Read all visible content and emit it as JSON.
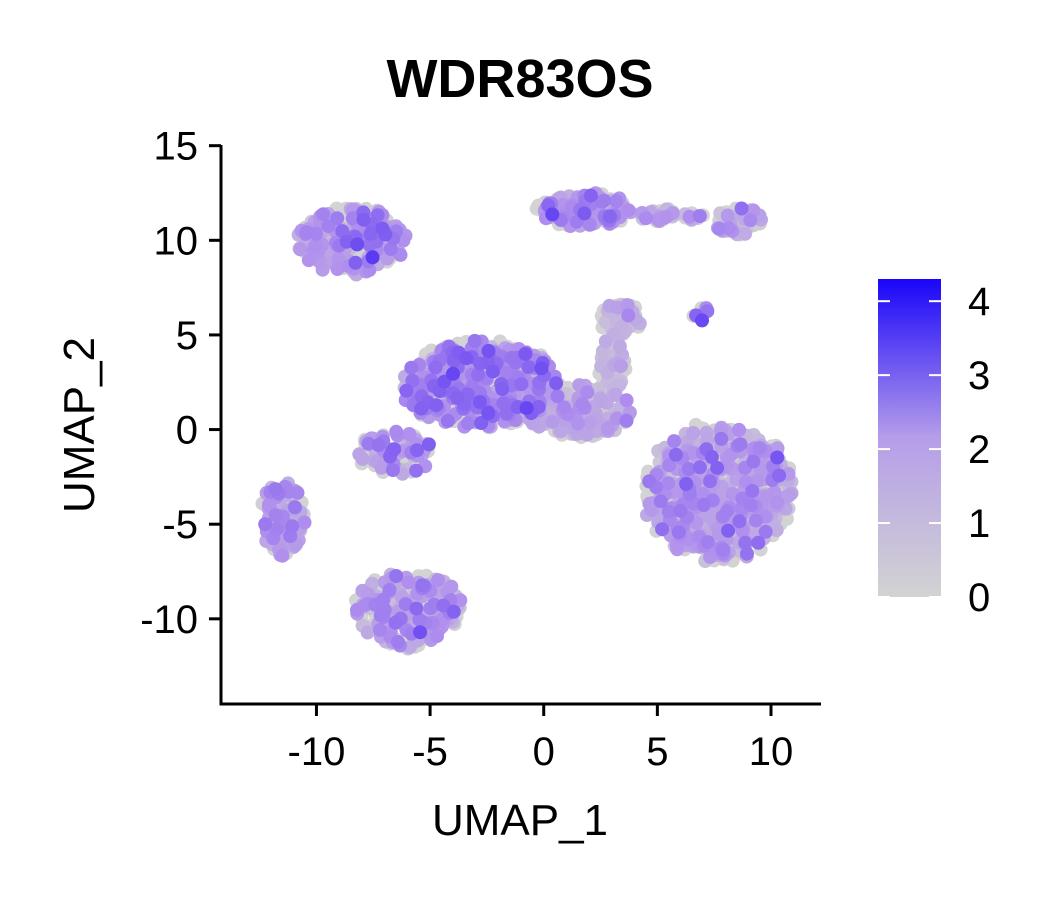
{
  "chart_data": {
    "type": "scatter",
    "title": "WDR83OS",
    "xlabel": "UMAP_1",
    "ylabel": "UMAP_2",
    "xlim": [
      -14.2,
      12.2
    ],
    "ylim": [
      -14.5,
      15.3
    ],
    "xticks": [
      -10,
      -5,
      0,
      5,
      10
    ],
    "xtick_labels": [
      "-10",
      "-5",
      "0",
      "5",
      "10"
    ],
    "yticks": [
      15,
      10,
      5,
      0,
      -5,
      -10
    ],
    "ytick_labels": [
      "15",
      "10",
      "5",
      "0",
      "-5",
      "-10"
    ],
    "grid": false,
    "legend": {
      "type": "colorbar",
      "placement": "right",
      "min": 0,
      "max": 4.3,
      "ticks": [
        0,
        1,
        2,
        3,
        4
      ],
      "tick_labels": [
        "0",
        "1",
        "2",
        "3",
        "4"
      ],
      "color_low": "#d3d3d3",
      "color_mid": "#b59ee9",
      "color_high": "#1a05fa"
    },
    "point_color_base": "#d3d3d3",
    "point_color_mid": "#b08fee",
    "point_color_high": "#5230f3",
    "clusters": [
      {
        "name": "top-left",
        "cx": -8.4,
        "cy": 10.0,
        "rx": 2.4,
        "ry": 1.8,
        "n": 220,
        "expr_mean": 1.8
      },
      {
        "name": "top-center",
        "cx": 1.8,
        "cy": 11.6,
        "rx": 2.1,
        "ry": 0.9,
        "n": 160,
        "expr_mean": 1.7
      },
      {
        "name": "top-bridge",
        "cx": 5.6,
        "cy": 11.3,
        "rx": 1.4,
        "ry": 0.35,
        "n": 40,
        "expr_mean": 1.2
      },
      {
        "name": "top-right",
        "cx": 8.6,
        "cy": 11.0,
        "rx": 1.1,
        "ry": 0.8,
        "n": 60,
        "expr_mean": 1.0
      },
      {
        "name": "left-small",
        "cx": -11.5,
        "cy": -4.7,
        "rx": 1.0,
        "ry": 2.0,
        "n": 110,
        "expr_mean": 1.4
      },
      {
        "name": "bottom-left",
        "cx": -6.0,
        "cy": -9.5,
        "rx": 2.4,
        "ry": 2.0,
        "n": 220,
        "expr_mean": 1.5
      },
      {
        "name": "center-main",
        "cx": -2.8,
        "cy": 2.4,
        "rx": 3.5,
        "ry": 2.3,
        "n": 480,
        "expr_mean": 1.9
      },
      {
        "name": "center-east",
        "cx": 1.5,
        "cy": 1.0,
        "rx": 2.3,
        "ry": 1.4,
        "n": 240,
        "expr_mean": 0.9
      },
      {
        "name": "center-west-arm",
        "cx": -6.5,
        "cy": -1.2,
        "rx": 1.8,
        "ry": 1.2,
        "n": 90,
        "expr_mean": 1.5
      },
      {
        "name": "gray-top",
        "cx": 3.4,
        "cy": 5.8,
        "rx": 0.9,
        "ry": 0.9,
        "n": 70,
        "expr_mean": 0.2
      },
      {
        "name": "gray-stalk",
        "cx": 3.0,
        "cy": 3.4,
        "rx": 0.6,
        "ry": 1.4,
        "n": 50,
        "expr_mean": 0.5
      },
      {
        "name": "right-large",
        "cx": 7.7,
        "cy": -3.3,
        "rx": 3.3,
        "ry": 3.6,
        "n": 620,
        "expr_mean": 1.3
      },
      {
        "name": "right-stripe",
        "cx": 7.0,
        "cy": 6.1,
        "rx": 0.5,
        "ry": 0.4,
        "n": 8,
        "expr_mean": 3.2
      }
    ]
  }
}
